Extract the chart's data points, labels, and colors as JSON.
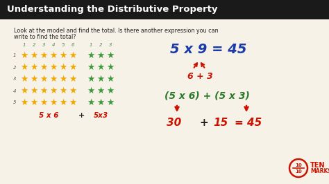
{
  "title": "Understanding the Distributive Property",
  "title_bg": "#1a1a1a",
  "title_color": "#ffffff",
  "bg_color": "#f7f2e8",
  "instruction_line1": "Look at the model and find the total. Is there another expression you can",
  "instruction_line2": "write to find the total?",
  "orange_star_cols": 6,
  "green_star_cols": 3,
  "star_rows": 5,
  "col_labels_orange": [
    "1",
    "2",
    "3",
    "4",
    "5",
    "6"
  ],
  "col_labels_green": [
    "1",
    "2",
    "3"
  ],
  "row_labels": [
    "1",
    "2",
    "3",
    "4",
    "5"
  ],
  "label_color": "#4a8a4a",
  "orange_color": "#f0a800",
  "green_color": "#3a9a3a",
  "red_color": "#cc1100",
  "blue_color": "#1a3aaa",
  "dark_green_color": "#2a7a2a",
  "bottom_label_left": "5 x 6",
  "bottom_label_plus": "+",
  "bottom_label_right": "5x3",
  "eq1": "5 x 9 = 45",
  "eq2": "6 + 3",
  "eq3": "(5 x 6) + (5 x 3)",
  "eq4_left": "30",
  "eq4_plus": "+",
  "eq4_right": "15",
  "eq4_eq": "= 45",
  "tenmarks_color": "#cc1100"
}
